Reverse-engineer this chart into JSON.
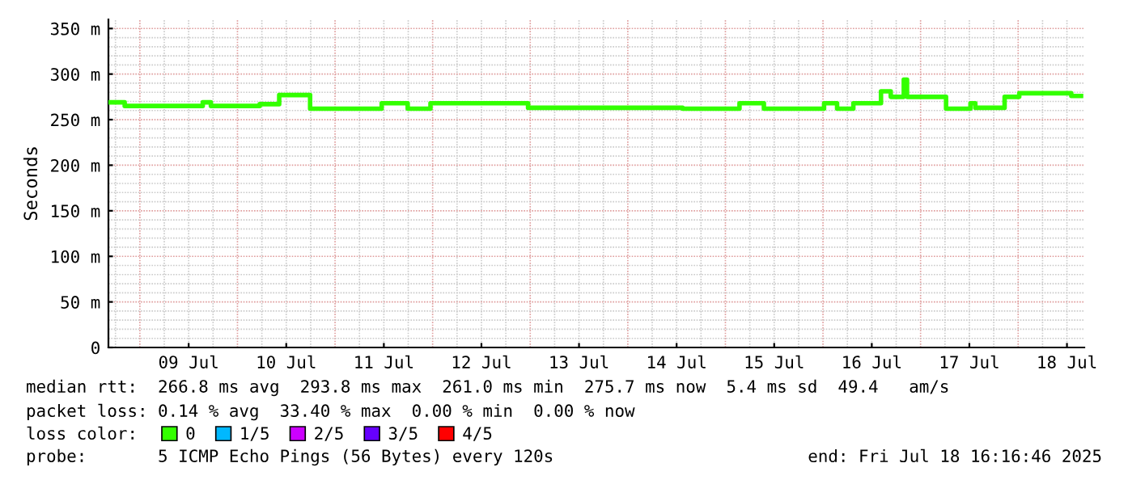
{
  "chart_data": {
    "type": "step",
    "ylabel": "Seconds",
    "x": [
      "2025-07-08T16:16",
      "2025-07-08T20:16",
      "2025-07-09T15:28",
      "2025-07-09T17:28",
      "2025-07-10T05:28",
      "2025-07-10T10:16",
      "2025-07-10T17:52",
      "2025-07-11T11:28",
      "2025-07-11T17:52",
      "2025-07-11T23:28",
      "2025-07-12T23:28",
      "2025-07-14T13:28",
      "2025-07-15T03:28",
      "2025-07-15T09:28",
      "2025-07-16T00:16",
      "2025-07-16T03:28",
      "2025-07-16T07:28",
      "2025-07-16T14:16",
      "2025-07-16T16:40",
      "2025-07-16T19:52",
      "2025-07-16T20:40",
      "2025-07-17T06:16",
      "2025-07-17T12:16",
      "2025-07-17T13:28",
      "2025-07-17T20:40",
      "2025-07-18T00:16",
      "2025-07-18T13:04",
      "2025-07-18T15:28"
    ],
    "series": [
      {
        "name": "0",
        "color": "#33ff00",
        "values": [
          269,
          265,
          269,
          265,
          267,
          277,
          262,
          268,
          262,
          268,
          263,
          262,
          268,
          262,
          268,
          262,
          268,
          281,
          275,
          294,
          275,
          262,
          268,
          263,
          275,
          279,
          276,
          276
        ]
      },
      {
        "name": "1/5",
        "color": "#00b8ff",
        "values": [
          null,
          null,
          null,
          null,
          null,
          null,
          null,
          null,
          null,
          null,
          null,
          null,
          null,
          null,
          null,
          null,
          null,
          null,
          null,
          null,
          null,
          null,
          null,
          null,
          null,
          null,
          null,
          null
        ]
      },
      {
        "name": "2/5",
        "color": "#cc00ff",
        "values": [
          null,
          null,
          null,
          null,
          null,
          null,
          null,
          null,
          null,
          null,
          null,
          null,
          null,
          null,
          null,
          null,
          null,
          null,
          null,
          null,
          null,
          null,
          null,
          null,
          null,
          null,
          null,
          null
        ]
      },
      {
        "name": "3/5",
        "color": "#6600ff",
        "values": [
          null,
          null,
          null,
          null,
          null,
          null,
          null,
          null,
          null,
          null,
          null,
          null,
          null,
          null,
          null,
          null,
          null,
          null,
          null,
          null,
          null,
          null,
          null,
          null,
          null,
          null,
          null,
          null
        ]
      },
      {
        "name": "4/5",
        "color": "#ff0000",
        "values": [
          null,
          null,
          null,
          null,
          null,
          null,
          null,
          null,
          null,
          null,
          null,
          null,
          null,
          null,
          null,
          null,
          null,
          null,
          null,
          null,
          null,
          null,
          null,
          null,
          null,
          null,
          null,
          null
        ]
      }
    ],
    "xlim": [
      "2025-07-08T16:16",
      "2025-07-18T16:16"
    ],
    "xticks": [
      {
        "value": "2025-07-09T12:00",
        "label": "09 Jul"
      },
      {
        "value": "2025-07-10T12:00",
        "label": "10 Jul"
      },
      {
        "value": "2025-07-11T12:00",
        "label": "11 Jul"
      },
      {
        "value": "2025-07-12T12:00",
        "label": "12 Jul"
      },
      {
        "value": "2025-07-13T12:00",
        "label": "13 Jul"
      },
      {
        "value": "2025-07-14T12:00",
        "label": "14 Jul"
      },
      {
        "value": "2025-07-15T12:00",
        "label": "15 Jul"
      },
      {
        "value": "2025-07-16T12:00",
        "label": "16 Jul"
      },
      {
        "value": "2025-07-17T12:00",
        "label": "17 Jul"
      },
      {
        "value": "2025-07-18T12:00",
        "label": "18 Jul"
      }
    ],
    "ylim": [
      0,
      360
    ],
    "yticks": [
      {
        "value": 0,
        "label": "0"
      },
      {
        "value": 50,
        "label": "50 m"
      },
      {
        "value": 100,
        "label": "100 m"
      },
      {
        "value": 150,
        "label": "150 m"
      },
      {
        "value": 200,
        "label": "200 m"
      },
      {
        "value": 250,
        "label": "250 m"
      },
      {
        "value": 300,
        "label": "300 m"
      },
      {
        "value": 350,
        "label": "350 m"
      }
    ],
    "grid": true,
    "legend": "bottom",
    "line_style": "solid",
    "legend_title": "loss color:",
    "annotations": [
      "median rtt:  266.8 ms avg  293.8 ms max  261.0 ms min  275.7 ms now  5.4 ms sd  49.4   am/s",
      "packet loss: 0.14 % avg  33.40 % max  0.00 % min  0.00 % now",
      "probe:       5 ICMP Echo Pings (56 Bytes) every 120s",
      "end: Fri Jul 18 16:16:46 2025"
    ]
  }
}
